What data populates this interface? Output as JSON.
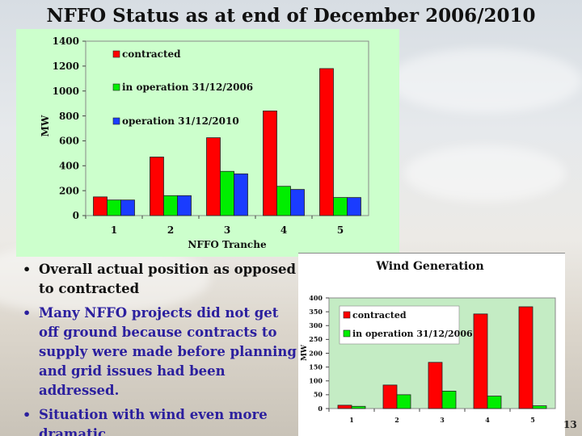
{
  "title": "NFFO Status as at end of December 2006/2010",
  "bullets": [
    {
      "text": "Overall actual position as opposed to contracted",
      "color": "#111111"
    },
    {
      "text": "Many NFFO projects did not get off ground because contracts to supply were made before planning and grid issues had been addressed.",
      "color": "#2b1f9e"
    },
    {
      "text": "Situation with wind even more dramatic.",
      "color": "#2b1f9e"
    }
  ],
  "page_number": "13",
  "chart_data": [
    {
      "type": "bar",
      "title": "",
      "xlabel": "NFFO Tranche",
      "ylabel": "MW",
      "ylim": [
        0,
        1400
      ],
      "yticks": [
        0,
        200,
        400,
        600,
        800,
        1000,
        1200,
        1400
      ],
      "categories": [
        "1",
        "2",
        "3",
        "4",
        "5"
      ],
      "legend_position": "inside-top-left",
      "series": [
        {
          "name": "contracted",
          "color": "#ff0000",
          "values": [
            150,
            470,
            625,
            840,
            1180
          ]
        },
        {
          "name": "in operation 31/12/2006",
          "color": "#00ee00",
          "values": [
            125,
            160,
            355,
            235,
            145
          ]
        },
        {
          "name": "operation 31/12/2010",
          "color": "#1a3cff",
          "values": [
            125,
            160,
            335,
            210,
            145
          ]
        }
      ]
    },
    {
      "type": "bar",
      "title": "Wind Generation",
      "xlabel": "",
      "ylabel": "MW",
      "ylim": [
        0,
        400
      ],
      "yticks": [
        0,
        50,
        100,
        150,
        200,
        250,
        300,
        350,
        400
      ],
      "categories": [
        "1",
        "2",
        "3",
        "4",
        "5"
      ],
      "legend_position": "inside-top-left",
      "series": [
        {
          "name": "contracted",
          "color": "#ff0000",
          "values": [
            12,
            85,
            167,
            342,
            368
          ]
        },
        {
          "name": "in operation 31/12/2006",
          "color": "#00ee00",
          "values": [
            8,
            50,
            63,
            45,
            10
          ]
        }
      ]
    }
  ]
}
